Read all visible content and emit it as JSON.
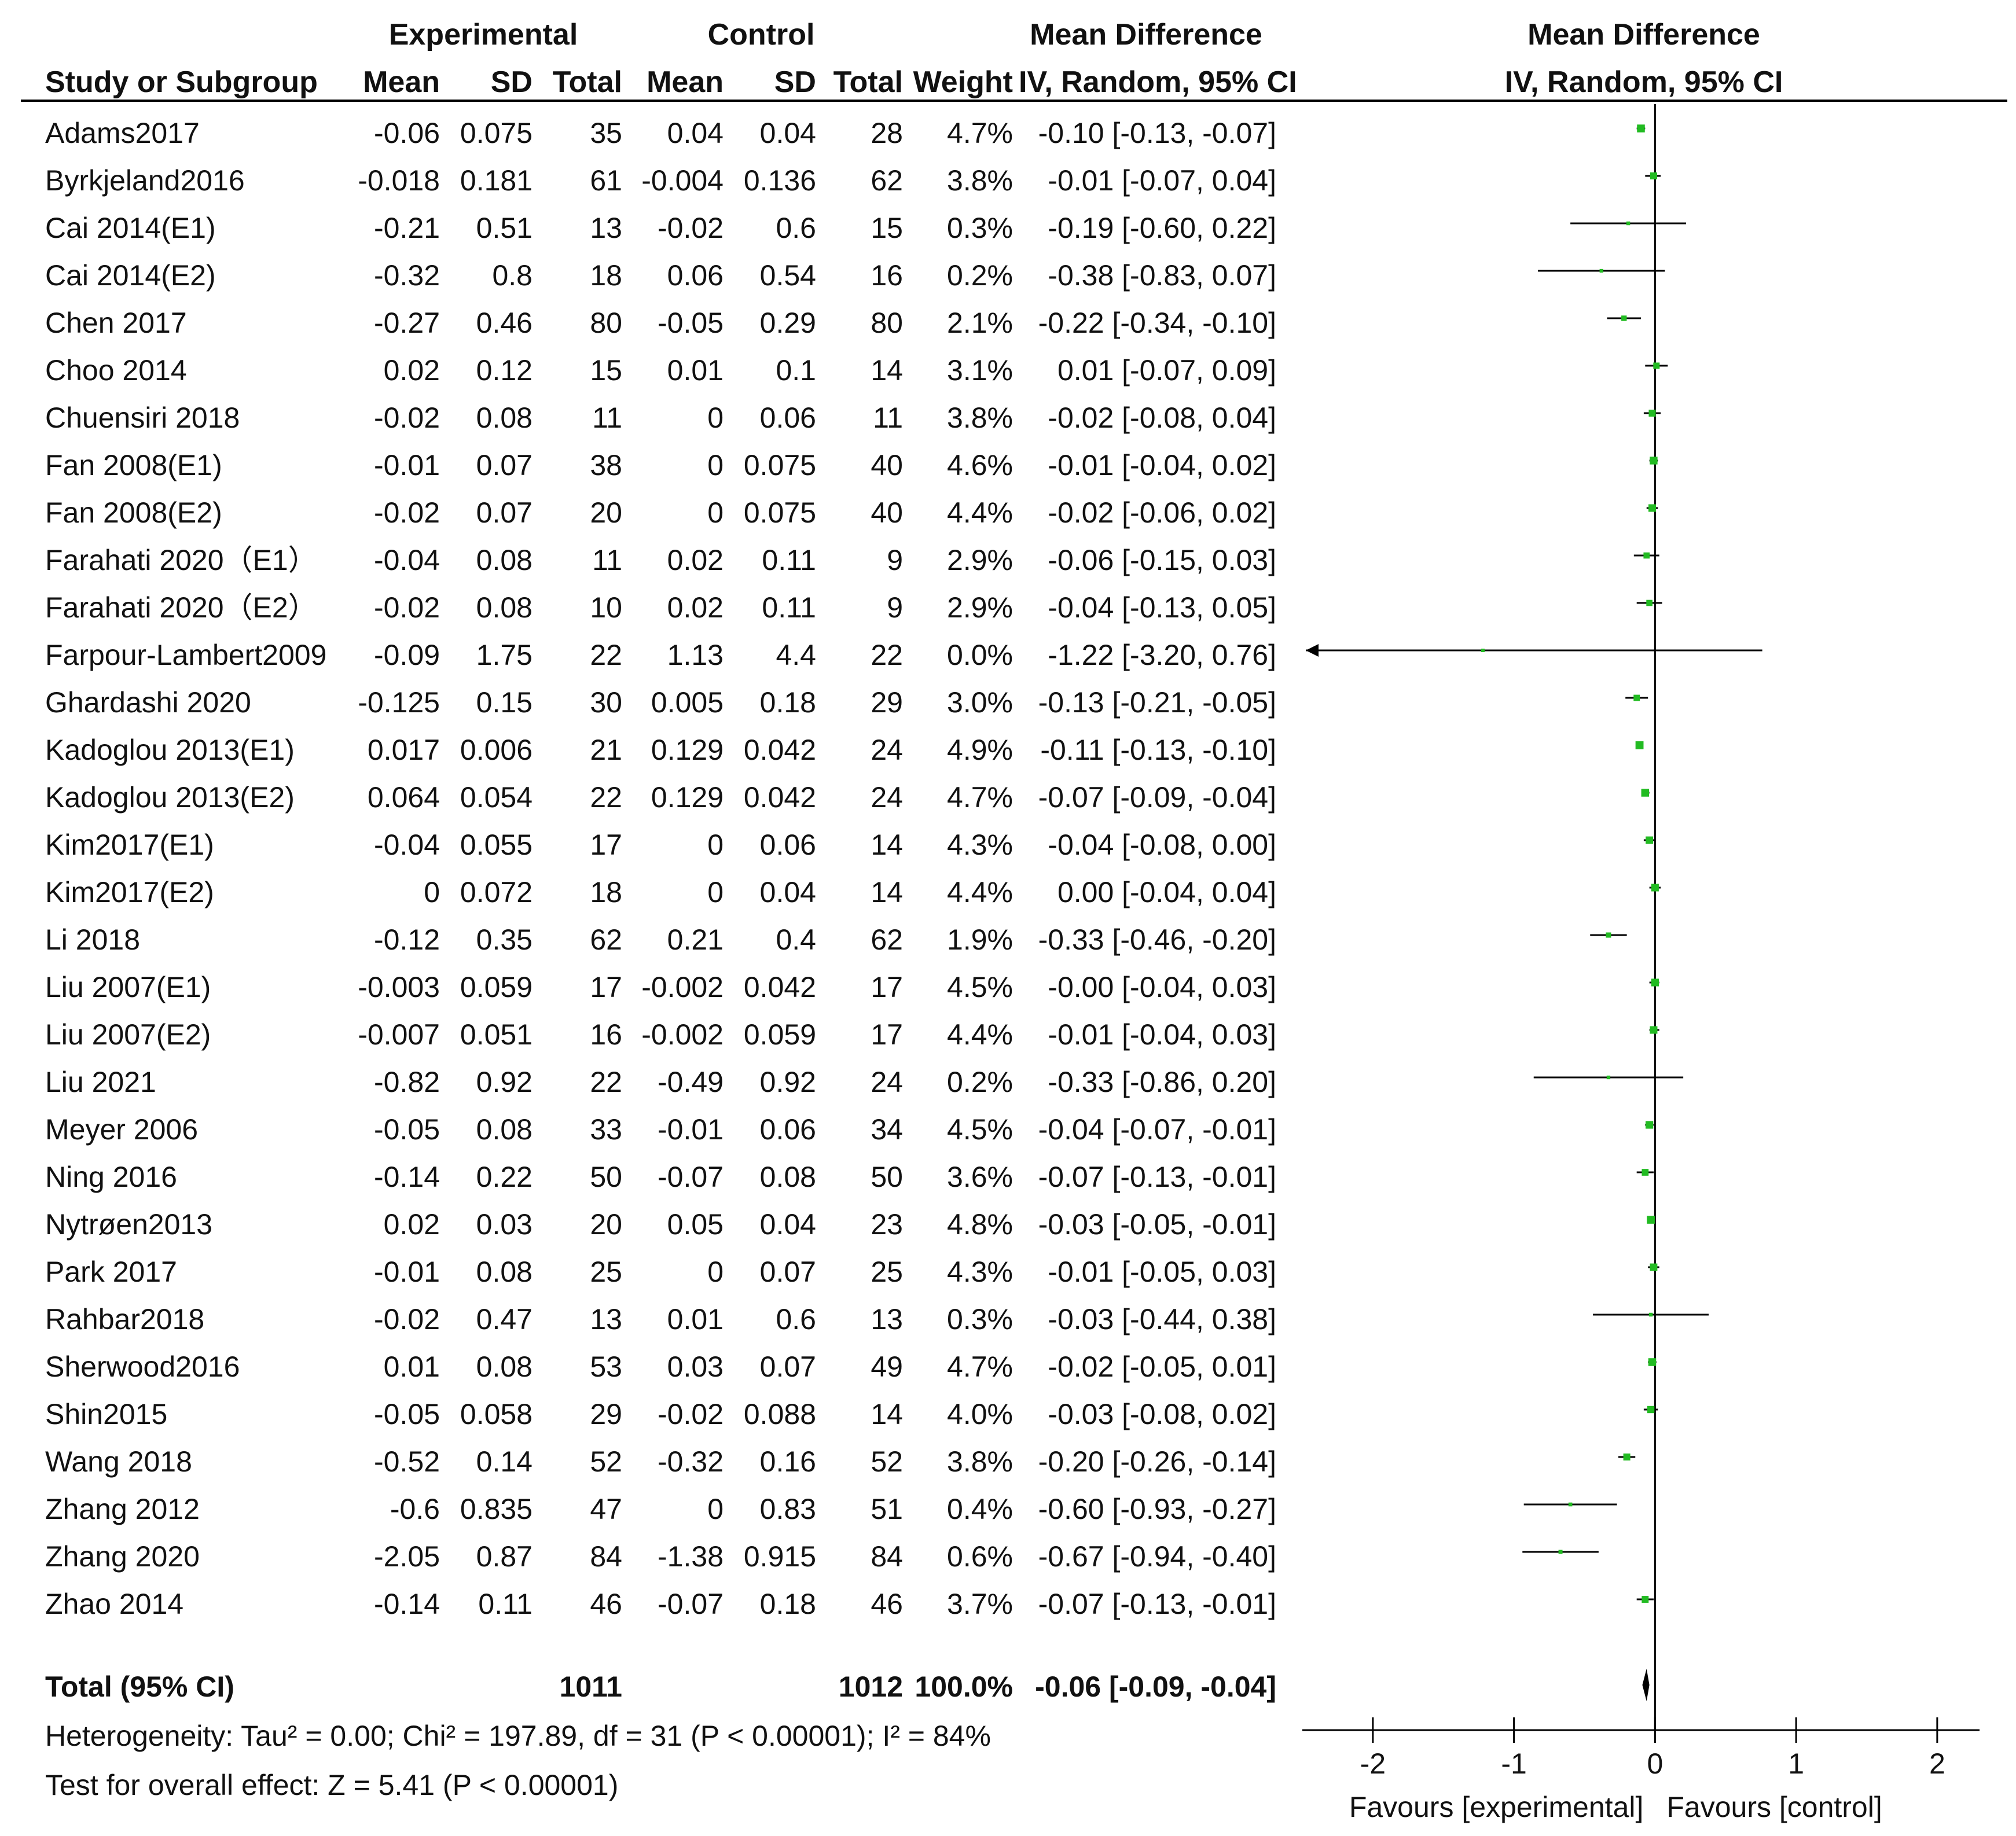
{
  "headers": {
    "experimental": "Experimental",
    "control": "Control",
    "mean_difference": "Mean Difference",
    "plot_title": "Mean Difference",
    "study": "Study or Subgroup",
    "mean": "Mean",
    "sd": "SD",
    "total": "Total",
    "weight": "Weight",
    "method": "IV, Random, 95% CI",
    "plot_method": "IV, Random, 95% CI"
  },
  "studies": [
    {
      "name": "Adams2017",
      "e_mean": "-0.06",
      "e_sd": "0.075",
      "e_total": "35",
      "c_mean": "0.04",
      "c_sd": "0.04",
      "c_total": "28",
      "weight": "4.7%",
      "ci": "-0.10 [-0.13, -0.07]"
    },
    {
      "name": "Byrkjeland2016",
      "e_mean": "-0.018",
      "e_sd": "0.181",
      "e_total": "61",
      "c_mean": "-0.004",
      "c_sd": "0.136",
      "c_total": "62",
      "weight": "3.8%",
      "ci": "-0.01 [-0.07, 0.04]"
    },
    {
      "name": "Cai 2014(E1)",
      "e_mean": "-0.21",
      "e_sd": "0.51",
      "e_total": "13",
      "c_mean": "-0.02",
      "c_sd": "0.6",
      "c_total": "15",
      "weight": "0.3%",
      "ci": "-0.19 [-0.60, 0.22]"
    },
    {
      "name": "Cai 2014(E2)",
      "e_mean": "-0.32",
      "e_sd": "0.8",
      "e_total": "18",
      "c_mean": "0.06",
      "c_sd": "0.54",
      "c_total": "16",
      "weight": "0.2%",
      "ci": "-0.38 [-0.83, 0.07]"
    },
    {
      "name": "Chen 2017",
      "e_mean": "-0.27",
      "e_sd": "0.46",
      "e_total": "80",
      "c_mean": "-0.05",
      "c_sd": "0.29",
      "c_total": "80",
      "weight": "2.1%",
      "ci": "-0.22 [-0.34, -0.10]"
    },
    {
      "name": "Choo 2014",
      "e_mean": "0.02",
      "e_sd": "0.12",
      "e_total": "15",
      "c_mean": "0.01",
      "c_sd": "0.1",
      "c_total": "14",
      "weight": "3.1%",
      "ci": "0.01 [-0.07, 0.09]"
    },
    {
      "name": "Chuensiri 2018",
      "e_mean": "-0.02",
      "e_sd": "0.08",
      "e_total": "11",
      "c_mean": "0",
      "c_sd": "0.06",
      "c_total": "11",
      "weight": "3.8%",
      "ci": "-0.02 [-0.08, 0.04]"
    },
    {
      "name": "Fan 2008(E1)",
      "e_mean": "-0.01",
      "e_sd": "0.07",
      "e_total": "38",
      "c_mean": "0",
      "c_sd": "0.075",
      "c_total": "40",
      "weight": "4.6%",
      "ci": "-0.01 [-0.04, 0.02]"
    },
    {
      "name": "Fan 2008(E2)",
      "e_mean": "-0.02",
      "e_sd": "0.07",
      "e_total": "20",
      "c_mean": "0",
      "c_sd": "0.075",
      "c_total": "40",
      "weight": "4.4%",
      "ci": "-0.02 [-0.06, 0.02]"
    },
    {
      "name": "Farahati 2020（E1）",
      "e_mean": "-0.04",
      "e_sd": "0.08",
      "e_total": "11",
      "c_mean": "0.02",
      "c_sd": "0.11",
      "c_total": "9",
      "weight": "2.9%",
      "ci": "-0.06 [-0.15, 0.03]"
    },
    {
      "name": "Farahati 2020（E2）",
      "e_mean": "-0.02",
      "e_sd": "0.08",
      "e_total": "10",
      "c_mean": "0.02",
      "c_sd": "0.11",
      "c_total": "9",
      "weight": "2.9%",
      "ci": "-0.04 [-0.13, 0.05]"
    },
    {
      "name": "Farpour-Lambert2009",
      "e_mean": "-0.09",
      "e_sd": "1.75",
      "e_total": "22",
      "c_mean": "1.13",
      "c_sd": "4.4",
      "c_total": "22",
      "weight": "0.0%",
      "ci": "-1.22 [-3.20, 0.76]"
    },
    {
      "name": "Ghardashi 2020",
      "e_mean": "-0.125",
      "e_sd": "0.15",
      "e_total": "30",
      "c_mean": "0.005",
      "c_sd": "0.18",
      "c_total": "29",
      "weight": "3.0%",
      "ci": "-0.13 [-0.21, -0.05]"
    },
    {
      "name": "Kadoglou 2013(E1)",
      "e_mean": "0.017",
      "e_sd": "0.006",
      "e_total": "21",
      "c_mean": "0.129",
      "c_sd": "0.042",
      "c_total": "24",
      "weight": "4.9%",
      "ci": "-0.11 [-0.13, -0.10]"
    },
    {
      "name": "Kadoglou 2013(E2)",
      "e_mean": "0.064",
      "e_sd": "0.054",
      "e_total": "22",
      "c_mean": "0.129",
      "c_sd": "0.042",
      "c_total": "24",
      "weight": "4.7%",
      "ci": "-0.07 [-0.09, -0.04]"
    },
    {
      "name": "Kim2017(E1)",
      "e_mean": "-0.04",
      "e_sd": "0.055",
      "e_total": "17",
      "c_mean": "0",
      "c_sd": "0.06",
      "c_total": "14",
      "weight": "4.3%",
      "ci": "-0.04 [-0.08, 0.00]"
    },
    {
      "name": "Kim2017(E2)",
      "e_mean": "0",
      "e_sd": "0.072",
      "e_total": "18",
      "c_mean": "0",
      "c_sd": "0.04",
      "c_total": "14",
      "weight": "4.4%",
      "ci": "0.00 [-0.04, 0.04]"
    },
    {
      "name": "Li 2018",
      "e_mean": "-0.12",
      "e_sd": "0.35",
      "e_total": "62",
      "c_mean": "0.21",
      "c_sd": "0.4",
      "c_total": "62",
      "weight": "1.9%",
      "ci": "-0.33 [-0.46, -0.20]"
    },
    {
      "name": "Liu 2007(E1)",
      "e_mean": "-0.003",
      "e_sd": "0.059",
      "e_total": "17",
      "c_mean": "-0.002",
      "c_sd": "0.042",
      "c_total": "17",
      "weight": "4.5%",
      "ci": "-0.00 [-0.04, 0.03]"
    },
    {
      "name": "Liu 2007(E2)",
      "e_mean": "-0.007",
      "e_sd": "0.051",
      "e_total": "16",
      "c_mean": "-0.002",
      "c_sd": "0.059",
      "c_total": "17",
      "weight": "4.4%",
      "ci": "-0.01 [-0.04, 0.03]"
    },
    {
      "name": "Liu 2021",
      "e_mean": "-0.82",
      "e_sd": "0.92",
      "e_total": "22",
      "c_mean": "-0.49",
      "c_sd": "0.92",
      "c_total": "24",
      "weight": "0.2%",
      "ci": "-0.33 [-0.86, 0.20]"
    },
    {
      "name": "Meyer 2006",
      "e_mean": "-0.05",
      "e_sd": "0.08",
      "e_total": "33",
      "c_mean": "-0.01",
      "c_sd": "0.06",
      "c_total": "34",
      "weight": "4.5%",
      "ci": "-0.04 [-0.07, -0.01]"
    },
    {
      "name": "Ning 2016",
      "e_mean": "-0.14",
      "e_sd": "0.22",
      "e_total": "50",
      "c_mean": "-0.07",
      "c_sd": "0.08",
      "c_total": "50",
      "weight": "3.6%",
      "ci": "-0.07 [-0.13, -0.01]"
    },
    {
      "name": "Nytrøen2013",
      "e_mean": "0.02",
      "e_sd": "0.03",
      "e_total": "20",
      "c_mean": "0.05",
      "c_sd": "0.04",
      "c_total": "23",
      "weight": "4.8%",
      "ci": "-0.03 [-0.05, -0.01]"
    },
    {
      "name": "Park 2017",
      "e_mean": "-0.01",
      "e_sd": "0.08",
      "e_total": "25",
      "c_mean": "0",
      "c_sd": "0.07",
      "c_total": "25",
      "weight": "4.3%",
      "ci": "-0.01 [-0.05, 0.03]"
    },
    {
      "name": "Rahbar2018",
      "e_mean": "-0.02",
      "e_sd": "0.47",
      "e_total": "13",
      "c_mean": "0.01",
      "c_sd": "0.6",
      "c_total": "13",
      "weight": "0.3%",
      "ci": "-0.03 [-0.44, 0.38]"
    },
    {
      "name": "Sherwood2016",
      "e_mean": "0.01",
      "e_sd": "0.08",
      "e_total": "53",
      "c_mean": "0.03",
      "c_sd": "0.07",
      "c_total": "49",
      "weight": "4.7%",
      "ci": "-0.02 [-0.05, 0.01]"
    },
    {
      "name": "Shin2015",
      "e_mean": "-0.05",
      "e_sd": "0.058",
      "e_total": "29",
      "c_mean": "-0.02",
      "c_sd": "0.088",
      "c_total": "14",
      "weight": "4.0%",
      "ci": "-0.03 [-0.08, 0.02]"
    },
    {
      "name": "Wang 2018",
      "e_mean": "-0.52",
      "e_sd": "0.14",
      "e_total": "52",
      "c_mean": "-0.32",
      "c_sd": "0.16",
      "c_total": "52",
      "weight": "3.8%",
      "ci": "-0.20 [-0.26, -0.14]"
    },
    {
      "name": "Zhang 2012",
      "e_mean": "-0.6",
      "e_sd": "0.835",
      "e_total": "47",
      "c_mean": "0",
      "c_sd": "0.83",
      "c_total": "51",
      "weight": "0.4%",
      "ci": "-0.60 [-0.93, -0.27]"
    },
    {
      "name": "Zhang 2020",
      "e_mean": "-2.05",
      "e_sd": "0.87",
      "e_total": "84",
      "c_mean": "-1.38",
      "c_sd": "0.915",
      "c_total": "84",
      "weight": "0.6%",
      "ci": "-0.67 [-0.94, -0.40]"
    },
    {
      "name": "Zhao 2014",
      "e_mean": "-0.14",
      "e_sd": "0.11",
      "e_total": "46",
      "c_mean": "-0.07",
      "c_sd": "0.18",
      "c_total": "46",
      "weight": "3.7%",
      "ci": "-0.07 [-0.13, -0.01]"
    }
  ],
  "total": {
    "label": "Total (95% CI)",
    "e_total": "1011",
    "c_total": "1012",
    "weight": "100.0%",
    "ci": "-0.06 [-0.09, -0.04]"
  },
  "heterogeneity": "Heterogeneity: Tau² = 0.00; Chi² = 197.89, df = 31 (P < 0.00001); I² = 84%",
  "overall_effect": "Test for overall effect: Z = 5.41 (P < 0.00001)",
  "colors": {
    "marker": "#22bb22",
    "line": "#000000",
    "diamond": "#000000"
  },
  "chart_data": {
    "type": "forest",
    "title": "Mean Difference",
    "subtitle": "IV, Random, 95% CI",
    "xlim": [
      -2.5,
      2.3
    ],
    "xticks": [
      -2,
      -1,
      0,
      1,
      2
    ],
    "xtick_labels": [
      "-2",
      "-1",
      "0",
      "1",
      "2"
    ],
    "xlabel_left": "Favours [experimental]",
    "xlabel_right": "Favours [control]",
    "points": [
      {
        "study": "Adams2017",
        "md": -0.1,
        "lo": -0.13,
        "hi": -0.07,
        "weight": 4.7
      },
      {
        "study": "Byrkjeland2016",
        "md": -0.01,
        "lo": -0.07,
        "hi": 0.04,
        "weight": 3.8
      },
      {
        "study": "Cai 2014(E1)",
        "md": -0.19,
        "lo": -0.6,
        "hi": 0.22,
        "weight": 0.3
      },
      {
        "study": "Cai 2014(E2)",
        "md": -0.38,
        "lo": -0.83,
        "hi": 0.07,
        "weight": 0.2
      },
      {
        "study": "Chen 2017",
        "md": -0.22,
        "lo": -0.34,
        "hi": -0.1,
        "weight": 2.1
      },
      {
        "study": "Choo 2014",
        "md": 0.01,
        "lo": -0.07,
        "hi": 0.09,
        "weight": 3.1
      },
      {
        "study": "Chuensiri 2018",
        "md": -0.02,
        "lo": -0.08,
        "hi": 0.04,
        "weight": 3.8
      },
      {
        "study": "Fan 2008(E1)",
        "md": -0.01,
        "lo": -0.04,
        "hi": 0.02,
        "weight": 4.6
      },
      {
        "study": "Fan 2008(E2)",
        "md": -0.02,
        "lo": -0.06,
        "hi": 0.02,
        "weight": 4.4
      },
      {
        "study": "Farahati 2020（E1）",
        "md": -0.06,
        "lo": -0.15,
        "hi": 0.03,
        "weight": 2.9
      },
      {
        "study": "Farahati 2020（E2）",
        "md": -0.04,
        "lo": -0.13,
        "hi": 0.05,
        "weight": 2.9
      },
      {
        "study": "Farpour-Lambert2009",
        "md": -1.22,
        "lo": -3.2,
        "hi": 0.76,
        "weight": 0.0
      },
      {
        "study": "Ghardashi 2020",
        "md": -0.13,
        "lo": -0.21,
        "hi": -0.05,
        "weight": 3.0
      },
      {
        "study": "Kadoglou 2013(E1)",
        "md": -0.11,
        "lo": -0.13,
        "hi": -0.1,
        "weight": 4.9
      },
      {
        "study": "Kadoglou 2013(E2)",
        "md": -0.07,
        "lo": -0.09,
        "hi": -0.04,
        "weight": 4.7
      },
      {
        "study": "Kim2017(E1)",
        "md": -0.04,
        "lo": -0.08,
        "hi": 0.0,
        "weight": 4.3
      },
      {
        "study": "Kim2017(E2)",
        "md": 0.0,
        "lo": -0.04,
        "hi": 0.04,
        "weight": 4.4
      },
      {
        "study": "Li 2018",
        "md": -0.33,
        "lo": -0.46,
        "hi": -0.2,
        "weight": 1.9
      },
      {
        "study": "Liu 2007(E1)",
        "md": -0.0,
        "lo": -0.04,
        "hi": 0.03,
        "weight": 4.5
      },
      {
        "study": "Liu 2007(E2)",
        "md": -0.01,
        "lo": -0.04,
        "hi": 0.03,
        "weight": 4.4
      },
      {
        "study": "Liu 2021",
        "md": -0.33,
        "lo": -0.86,
        "hi": 0.2,
        "weight": 0.2
      },
      {
        "study": "Meyer 2006",
        "md": -0.04,
        "lo": -0.07,
        "hi": -0.01,
        "weight": 4.5
      },
      {
        "study": "Ning 2016",
        "md": -0.07,
        "lo": -0.13,
        "hi": -0.01,
        "weight": 3.6
      },
      {
        "study": "Nytrøen2013",
        "md": -0.03,
        "lo": -0.05,
        "hi": -0.01,
        "weight": 4.8
      },
      {
        "study": "Park 2017",
        "md": -0.01,
        "lo": -0.05,
        "hi": 0.03,
        "weight": 4.3
      },
      {
        "study": "Rahbar2018",
        "md": -0.03,
        "lo": -0.44,
        "hi": 0.38,
        "weight": 0.3
      },
      {
        "study": "Sherwood2016",
        "md": -0.02,
        "lo": -0.05,
        "hi": 0.01,
        "weight": 4.7
      },
      {
        "study": "Shin2015",
        "md": -0.03,
        "lo": -0.08,
        "hi": 0.02,
        "weight": 4.0
      },
      {
        "study": "Wang 2018",
        "md": -0.2,
        "lo": -0.26,
        "hi": -0.14,
        "weight": 3.8
      },
      {
        "study": "Zhang 2012",
        "md": -0.6,
        "lo": -0.93,
        "hi": -0.27,
        "weight": 0.4
      },
      {
        "study": "Zhang 2020",
        "md": -0.67,
        "lo": -0.94,
        "hi": -0.4,
        "weight": 0.6
      },
      {
        "study": "Zhao 2014",
        "md": -0.07,
        "lo": -0.13,
        "hi": -0.01,
        "weight": 3.7
      }
    ],
    "pooled": {
      "md": -0.06,
      "lo": -0.09,
      "hi": -0.04
    }
  }
}
